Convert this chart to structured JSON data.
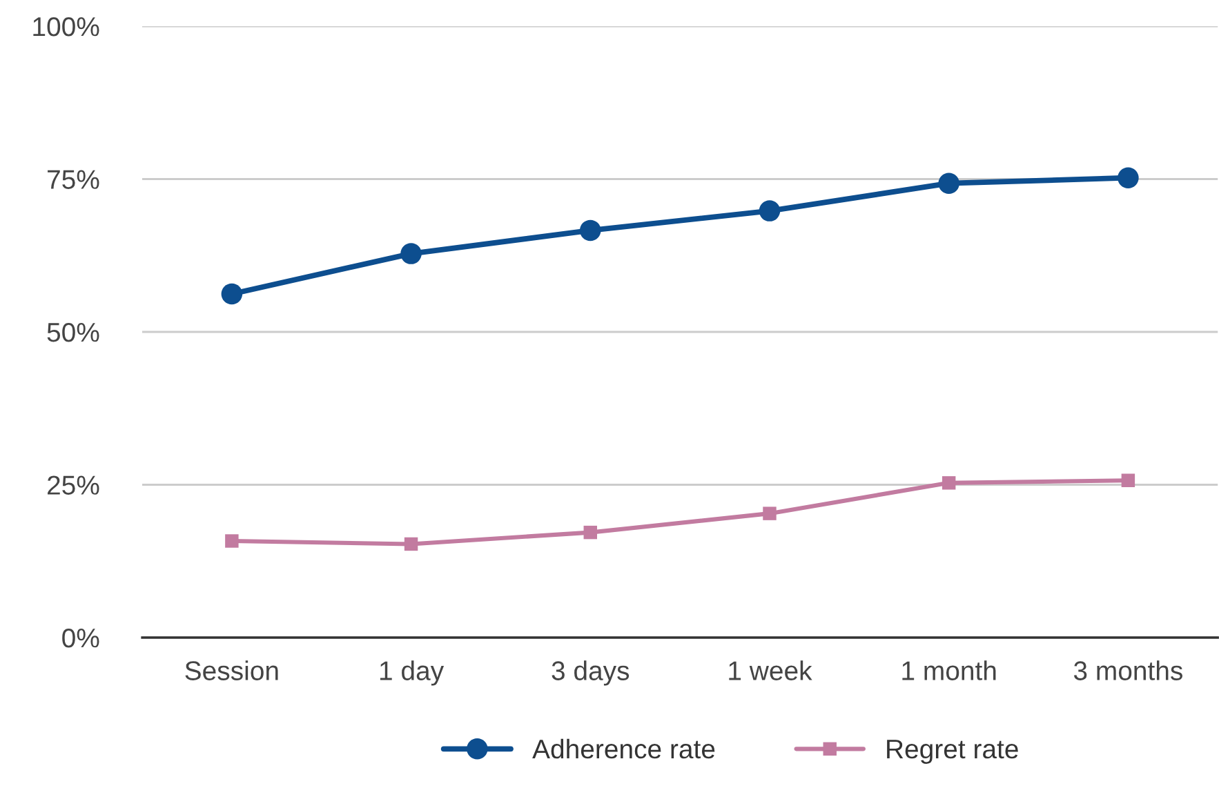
{
  "chart_data": {
    "type": "line",
    "categories": [
      "Session",
      "1 day",
      "3 days",
      "1 week",
      "1 month",
      "3 months"
    ],
    "series": [
      {
        "name": "Adherence rate",
        "color": "#0d4e8f",
        "marker": "circle",
        "values": [
          56.2,
          62.8,
          66.6,
          69.8,
          74.3,
          75.2
        ]
      },
      {
        "name": "Regret rate",
        "color": "#c27ba0",
        "marker": "square",
        "values": [
          15.8,
          15.3,
          17.2,
          20.3,
          25.3,
          25.7
        ]
      }
    ],
    "ylim": [
      0,
      100
    ],
    "yticks": [
      {
        "value": 0,
        "label": "0%"
      },
      {
        "value": 25,
        "label": "25%"
      },
      {
        "value": 50,
        "label": "50%"
      },
      {
        "value": 75,
        "label": "75%"
      },
      {
        "value": 100,
        "label": "100%"
      }
    ],
    "grid": "y",
    "legend": "bottom",
    "line_style": "solid"
  }
}
